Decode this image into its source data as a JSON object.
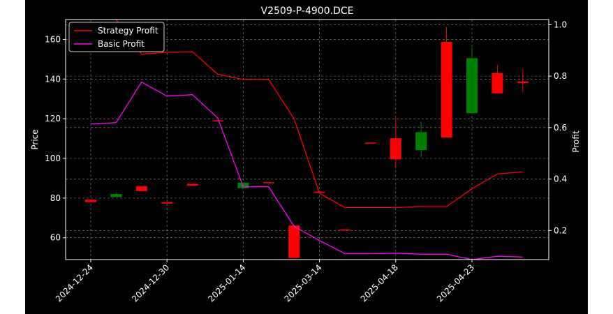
{
  "chart_data": {
    "type": "candlestick",
    "title": "V2509-P-4900.DCE",
    "xlabel": "",
    "ylabel": "Price",
    "y2label": "Profit",
    "ylim": [
      49,
      170
    ],
    "y2lim": [
      0.087,
      1.02
    ],
    "yticks": [
      60,
      80,
      100,
      120,
      140,
      160
    ],
    "y2ticks": [
      0.2,
      0.4,
      0.6,
      0.8,
      1.0
    ],
    "y2tick_labels": [
      "0.2",
      "0.4",
      "0.6",
      "0.8",
      "1.0"
    ],
    "x_tick_labels": [
      "2024-12-24",
      "2024-12-30",
      "2025-01-14",
      "2025-03-14",
      "2025-04-18",
      "2025-04-23"
    ],
    "x_tick_index": [
      0,
      3,
      6,
      9,
      12,
      15
    ],
    "grid": true,
    "legend_position": "top-left",
    "background": "#000000",
    "up_color": "#008000",
    "down_color": "#ff0000",
    "candles": [
      {
        "open": 79.2,
        "high": 79.2,
        "low": 78.0,
        "close": 78.0
      },
      {
        "open": 80.5,
        "high": 82.8,
        "low": 80.5,
        "close": 82.0
      },
      {
        "open": 86.0,
        "high": 86.0,
        "low": 83.5,
        "close": 83.5
      },
      {
        "open": 78.0,
        "high": 78.0,
        "low": 77.2,
        "close": 77.2
      },
      {
        "open": 87.2,
        "high": 87.2,
        "low": 86.2,
        "close": 86.2
      },
      {
        "open": 119.2,
        "high": 119.5,
        "low": 118.8,
        "close": 118.8
      },
      {
        "open": 85.0,
        "high": 87.8,
        "low": 85.0,
        "close": 87.8
      },
      {
        "open": 88.0,
        "high": 88.0,
        "low": 87.8,
        "close": 87.8
      },
      {
        "open": 66.2,
        "high": 66.2,
        "low": 49.8,
        "close": 49.8
      },
      {
        "open": 83.2,
        "high": 83.2,
        "low": 82.9,
        "close": 82.9
      },
      {
        "open": 64.2,
        "high": 64.2,
        "low": 64.0,
        "close": 64.0
      },
      {
        "open": 108.0,
        "high": 108.0,
        "low": 107.8,
        "close": 107.8
      },
      {
        "open": 110.2,
        "high": 120.5,
        "low": 95.5,
        "close": 99.5
      },
      {
        "open": 104.2,
        "high": 118.5,
        "low": 100.5,
        "close": 113.2
      },
      {
        "open": 158.8,
        "high": 166.2,
        "low": 110.5,
        "close": 110.5
      },
      {
        "open": 122.8,
        "high": 155.8,
        "low": 122.8,
        "close": 150.5
      },
      {
        "open": 143.0,
        "high": 147.2,
        "low": 132.8,
        "close": 132.8
      },
      {
        "open": 138.8,
        "high": 145.0,
        "low": 133.2,
        "close": 138.0
      }
    ],
    "series": [
      {
        "name": "Strategy Profit",
        "axis": "right",
        "color": "#ff0000",
        "values": [
          1.02,
          1.02,
          0.885,
          0.893,
          0.895,
          0.807,
          0.787,
          0.787,
          0.634,
          0.345,
          0.289,
          0.289,
          0.289,
          0.293,
          0.293,
          0.362,
          0.42,
          0.428
        ]
      },
      {
        "name": "Basic Profit",
        "axis": "right",
        "color": "#ff00ff",
        "values": [
          0.614,
          0.619,
          0.777,
          0.722,
          0.728,
          0.637,
          0.37,
          0.37,
          0.216,
          0.161,
          0.11,
          0.11,
          0.112,
          0.108,
          0.108,
          0.087,
          0.1,
          0.097
        ]
      }
    ]
  }
}
